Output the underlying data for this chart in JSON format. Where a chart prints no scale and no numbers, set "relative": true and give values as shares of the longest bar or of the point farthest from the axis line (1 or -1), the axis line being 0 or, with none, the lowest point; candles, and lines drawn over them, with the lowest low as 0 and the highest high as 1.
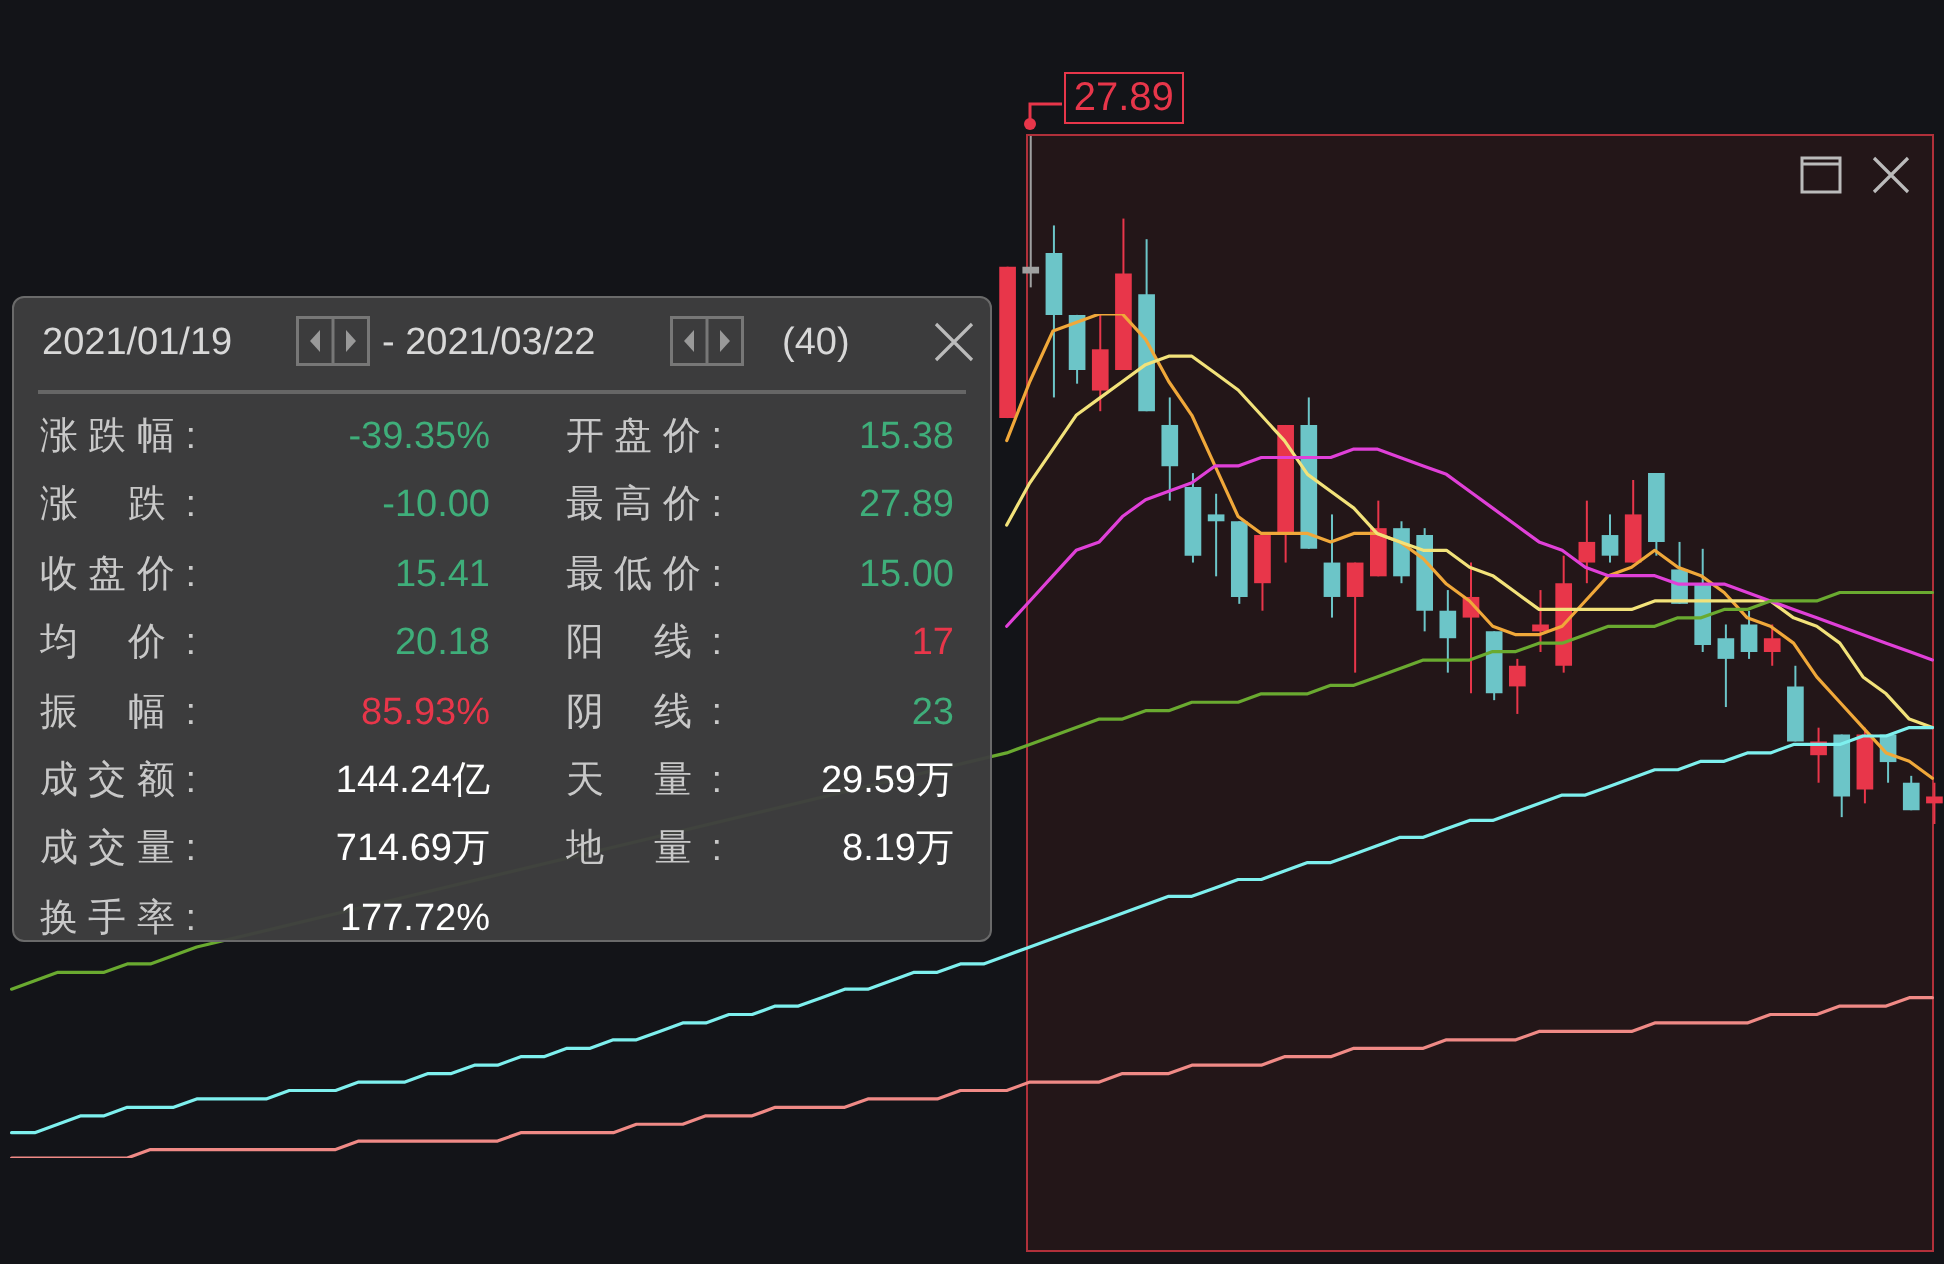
{
  "chart_data": [
    {
      "type": "candlestick",
      "relative": true,
      "categories": [
        null,
        null,
        null,
        null,
        null,
        null,
        null,
        null,
        null,
        null,
        null,
        null,
        null,
        null,
        null,
        null,
        null,
        null,
        null,
        null,
        null,
        null,
        null,
        null,
        null,
        null,
        null,
        null,
        null,
        null,
        null,
        null,
        null,
        null,
        null,
        null,
        null,
        null,
        null,
        null,
        null
      ],
      "ohlc": [
        [
          0.59,
          0.81,
          0.59,
          0.81
        ],
        [
          0.81,
          1,
          0.78,
          0.8
        ],
        [
          0.83,
          0.87,
          0.62,
          0.74
        ],
        [
          0.74,
          0.74,
          0.64,
          0.66
        ],
        [
          0.63,
          0.74,
          0.6,
          0.69
        ],
        [
          0.66,
          0.88,
          0.66,
          0.8
        ],
        [
          0.77,
          0.85,
          0.6,
          0.6
        ],
        [
          0.58,
          0.62,
          0.47,
          0.52
        ],
        [
          0.49,
          0.51,
          0.38,
          0.39
        ],
        [
          0.45,
          0.48,
          0.36,
          0.44
        ],
        [
          0.44,
          0.44,
          0.32,
          0.33
        ],
        [
          0.35,
          0.42,
          0.31,
          0.42
        ],
        [
          0.42,
          0.58,
          0.38,
          0.58
        ],
        [
          0.58,
          0.62,
          0.4,
          0.4
        ],
        [
          0.38,
          0.45,
          0.3,
          0.33
        ],
        [
          0.33,
          0.38,
          0.22,
          0.38
        ],
        [
          0.36,
          0.47,
          0.36,
          0.43
        ],
        [
          0.43,
          0.44,
          0.35,
          0.36
        ],
        [
          0.42,
          0.43,
          0.28,
          0.31
        ],
        [
          0.31,
          0.34,
          0.22,
          0.27
        ],
        [
          0.3,
          0.38,
          0.19,
          0.33
        ],
        [
          0.28,
          0.28,
          0.18,
          0.19
        ],
        [
          0.2,
          0.24,
          0.16,
          0.23
        ],
        [
          0.28,
          0.34,
          0.25,
          0.29
        ],
        [
          0.23,
          0.39,
          0.22,
          0.35
        ],
        [
          0.38,
          0.47,
          0.35,
          0.41
        ],
        [
          0.42,
          0.45,
          0.38,
          0.39
        ],
        [
          0.38,
          0.5,
          0.38,
          0.45
        ],
        [
          0.51,
          0.51,
          0.39,
          0.41
        ],
        [
          0.37,
          0.41,
          0.32,
          0.32
        ],
        [
          0.35,
          0.4,
          0.25,
          0.26
        ],
        [
          0.27,
          0.29,
          0.17,
          0.24
        ],
        [
          0.29,
          0.31,
          0.24,
          0.25
        ],
        [
          0.25,
          0.29,
          0.23,
          0.27
        ],
        [
          0.2,
          0.23,
          0.12,
          0.12
        ],
        [
          0.1,
          0.14,
          0.06,
          0.12
        ],
        [
          0.13,
          0.13,
          0.01,
          0.04
        ],
        [
          0.05,
          0.14,
          0.03,
          0.13
        ],
        [
          0.13,
          0.13,
          0.06,
          0.09
        ],
        [
          0.06,
          0.07,
          0.02,
          0.02
        ],
        [
          0.03,
          0.06,
          0,
          0.04
        ]
      ],
      "colors": [
        "#e8364a",
        "#a0a0a0",
        "#6cc5c8",
        "#6cc5c8",
        "#e8364a",
        "#e8364a",
        "#6cc5c8",
        "#6cc5c8",
        "#6cc5c8",
        "#6cc5c8",
        "#6cc5c8",
        "#e8364a",
        "#e8364a",
        "#6cc5c8",
        "#6cc5c8",
        "#e8364a",
        "#e8364a",
        "#6cc5c8",
        "#6cc5c8",
        "#6cc5c8",
        "#e8364a",
        "#6cc5c8",
        "#e8364a",
        "#e8364a",
        "#e8364a",
        "#e8364a",
        "#6cc5c8",
        "#e8364a",
        "#6cc5c8",
        "#6cc5c8",
        "#6cc5c8",
        "#6cc5c8",
        "#6cc5c8",
        "#e8364a",
        "#6cc5c8",
        "#e8364a",
        "#6cc5c8",
        "#e8364a",
        "#6cc5c8",
        "#6cc5c8",
        "#e8364a"
      ],
      "annotations": [
        "27.89",
        "2021/01/19",
        "- 2021/03/22",
        "(40)",
        "涨跌幅:",
        "-39.35%",
        "开盘价:",
        "15.38",
        "涨 跌:",
        "-10.00",
        "最高价:",
        "27.89",
        "收盘价:",
        "15.41",
        "最低价:",
        "15.00",
        "均 价:",
        "20.18",
        "阳 线:",
        "17",
        "振 幅:",
        "85.93%",
        "阴 线:",
        "23",
        "成交额:",
        "144.24亿",
        "天 量:",
        "29.59万",
        "成交量:",
        "714.69万",
        "地 量:",
        "8.19万",
        "换手率:",
        "177.72%"
      ]
    },
    {
      "type": "line",
      "relative": true,
      "marker": "none",
      "categories": [
        null,
        null,
        null,
        null,
        null,
        null,
        null,
        null,
        null,
        null,
        null,
        null,
        null,
        null,
        null,
        null,
        null,
        null,
        null,
        null,
        null,
        null,
        null,
        null,
        null,
        null,
        null,
        null,
        null,
        null,
        null,
        null,
        null,
        null,
        null,
        null,
        null,
        null,
        null,
        null,
        null,
        null,
        null,
        null,
        null,
        null,
        null,
        null,
        null,
        null,
        null,
        null,
        null,
        null,
        null,
        null,
        null,
        null,
        null,
        null,
        null,
        null,
        null,
        null,
        null,
        null,
        null,
        null,
        null,
        null,
        null,
        null,
        null,
        null,
        null,
        null,
        null,
        null,
        null,
        null,
        null,
        null,
        null,
        null
      ],
      "series": [
        {
          "color": "#f0a83a",
          "values": [
            null,
            null,
            null,
            null,
            null,
            null,
            null,
            null,
            null,
            null,
            null,
            null,
            null,
            null,
            null,
            null,
            null,
            null,
            null,
            null,
            null,
            null,
            null,
            null,
            null,
            null,
            null,
            null,
            null,
            null,
            null,
            null,
            null,
            null,
            null,
            null,
            null,
            null,
            null,
            null,
            null,
            null,
            null,
            0.85,
            0.92,
            0.98,
            0.99,
            1,
            1,
            0.97,
            0.92,
            0.88,
            0.82,
            0.76,
            0.74,
            0.74,
            0.74,
            0.73,
            0.74,
            0.74,
            0.73,
            0.71,
            0.68,
            0.66,
            0.63,
            0.62,
            0.62,
            0.63,
            0.66,
            0.69,
            0.7,
            0.72,
            0.7,
            0.69,
            0.67,
            0.64,
            0.63,
            0.61,
            0.57,
            0.54,
            0.51,
            0.48,
            0.47,
            0.45
          ]
        },
        {
          "color": "#f2e27a",
          "values": [
            null,
            null,
            null,
            null,
            null,
            null,
            null,
            null,
            null,
            null,
            null,
            null,
            null,
            null,
            null,
            null,
            null,
            null,
            null,
            null,
            null,
            null,
            null,
            null,
            null,
            null,
            null,
            null,
            null,
            null,
            null,
            null,
            null,
            null,
            null,
            null,
            null,
            null,
            null,
            null,
            null,
            null,
            null,
            0.75,
            0.8,
            0.84,
            0.88,
            0.9,
            0.92,
            0.94,
            0.95,
            0.95,
            0.93,
            0.91,
            0.88,
            0.85,
            0.81,
            0.79,
            0.77,
            0.74,
            0.73,
            0.72,
            0.72,
            0.7,
            0.69,
            0.67,
            0.65,
            0.65,
            0.65,
            0.65,
            0.65,
            0.66,
            0.66,
            0.66,
            0.66,
            0.66,
            0.66,
            0.64,
            0.63,
            0.61,
            0.57,
            0.55,
            0.52,
            0.51
          ]
        },
        {
          "color": "#e040d8",
          "values": [
            null,
            null,
            null,
            null,
            null,
            null,
            null,
            null,
            null,
            null,
            null,
            null,
            null,
            null,
            null,
            null,
            null,
            null,
            null,
            null,
            null,
            null,
            null,
            null,
            null,
            null,
            null,
            null,
            null,
            null,
            null,
            null,
            null,
            null,
            null,
            null,
            null,
            null,
            null,
            null,
            null,
            null,
            null,
            0.63,
            0.66,
            0.69,
            0.72,
            0.73,
            0.76,
            0.78,
            0.79,
            0.8,
            0.82,
            0.82,
            0.83,
            0.83,
            0.83,
            0.83,
            0.84,
            0.84,
            0.83,
            0.82,
            0.81,
            0.79,
            0.77,
            0.75,
            0.73,
            0.72,
            0.7,
            0.69,
            0.69,
            0.69,
            0.68,
            0.68,
            0.68,
            0.67,
            0.66,
            0.65,
            0.64,
            0.63,
            0.62,
            0.61,
            0.6,
            0.59
          ]
        },
        {
          "color": "#6aaa30",
          "values": [
            0.2,
            0.21,
            0.22,
            0.22,
            0.22,
            0.23,
            0.23,
            0.24,
            0.25,
            null,
            null,
            null,
            null,
            null,
            null,
            null,
            null,
            null,
            null,
            null,
            null,
            null,
            null,
            null,
            null,
            null,
            null,
            null,
            null,
            null,
            null,
            null,
            null,
            null,
            null,
            null,
            null,
            null,
            null,
            null,
            null,
            null,
            null,
            0.48,
            0.49,
            0.5,
            0.51,
            0.52,
            0.52,
            0.53,
            0.53,
            0.54,
            0.54,
            0.54,
            0.55,
            0.55,
            0.55,
            0.56,
            0.56,
            0.57,
            0.58,
            0.59,
            0.59,
            0.59,
            0.6,
            0.6,
            0.61,
            0.61,
            0.62,
            0.63,
            0.63,
            0.63,
            0.64,
            0.64,
            0.65,
            0.65,
            0.66,
            0.66,
            0.66,
            0.67,
            0.67,
            0.67,
            0.67,
            0.67
          ]
        },
        {
          "color": "#7ef0ee",
          "values": [
            0.03,
            0.03,
            0.04,
            0.05,
            0.05,
            0.06,
            0.06,
            0.06,
            0.07,
            0.07,
            0.07,
            0.07,
            0.08,
            0.08,
            0.08,
            0.09,
            0.09,
            0.09,
            0.1,
            0.1,
            0.11,
            0.11,
            0.12,
            0.12,
            0.13,
            0.13,
            0.14,
            0.14,
            0.15,
            0.16,
            0.16,
            0.17,
            0.17,
            0.18,
            0.18,
            0.19,
            0.2,
            0.2,
            0.21,
            0.22,
            0.22,
            0.23,
            0.23,
            0.24,
            0.25,
            0.26,
            0.27,
            0.28,
            0.29,
            0.3,
            0.31,
            0.31,
            0.32,
            0.33,
            0.33,
            0.34,
            0.35,
            0.35,
            0.36,
            0.37,
            0.38,
            0.38,
            0.39,
            0.4,
            0.4,
            0.41,
            0.42,
            0.43,
            0.43,
            0.44,
            0.45,
            0.46,
            0.46,
            0.47,
            0.47,
            0.48,
            0.48,
            0.49,
            0.49,
            0.49,
            0.5,
            0.5,
            0.51,
            0.51
          ]
        },
        {
          "color": "#f08a86",
          "values": [
            0,
            0,
            0,
            0,
            0,
            0,
            0.01,
            0.01,
            0.01,
            0.01,
            0.01,
            0.01,
            0.01,
            0.01,
            0.01,
            0.02,
            0.02,
            0.02,
            0.02,
            0.02,
            0.02,
            0.02,
            0.03,
            0.03,
            0.03,
            0.03,
            0.03,
            0.04,
            0.04,
            0.04,
            0.05,
            0.05,
            0.05,
            0.06,
            0.06,
            0.06,
            0.06,
            0.07,
            0.07,
            0.07,
            0.07,
            0.08,
            0.08,
            0.08,
            0.09,
            0.09,
            0.09,
            0.09,
            0.1,
            0.1,
            0.1,
            0.11,
            0.11,
            0.11,
            0.11,
            0.12,
            0.12,
            0.12,
            0.13,
            0.13,
            0.13,
            0.13,
            0.14,
            0.14,
            0.14,
            0.14,
            0.15,
            0.15,
            0.15,
            0.15,
            0.15,
            0.16,
            0.16,
            0.16,
            0.16,
            0.16,
            0.17,
            0.17,
            0.17,
            0.18,
            0.18,
            0.18,
            0.19,
            0.19
          ]
        }
      ]
    }
  ]
}
